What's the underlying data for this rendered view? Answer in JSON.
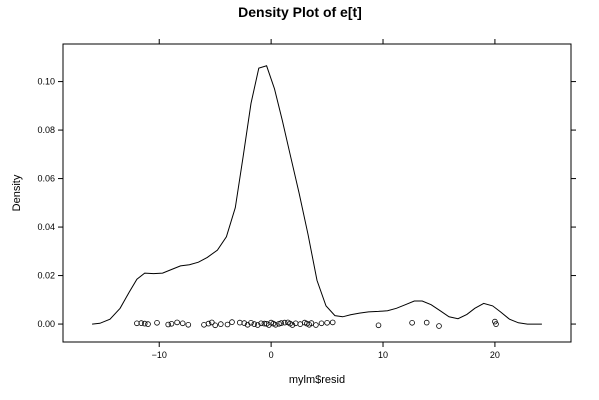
{
  "chart_data": {
    "type": "line",
    "title": "Density Plot of e[t]",
    "xlabel": "mylm$resid",
    "ylabel": "Density",
    "xlim": [
      -18.6,
      26.8
    ],
    "ylim": [
      -0.0074,
      0.1155
    ],
    "x_ticks": [
      -10,
      0,
      10,
      20
    ],
    "x_tick_labels": [
      "−10",
      "0",
      "10",
      "20"
    ],
    "y_ticks": [
      0.0,
      0.02,
      0.04,
      0.06,
      0.08,
      0.1
    ],
    "y_tick_labels": [
      "0.00",
      "0.02",
      "0.04",
      "0.06",
      "0.08",
      "0.10"
    ],
    "grid": false,
    "series": [
      {
        "kind": "density-line",
        "x": [
          -16.0,
          -15.3,
          -14.4,
          -13.5,
          -12.7,
          -12.0,
          -11.3,
          -10.5,
          -9.7,
          -8.9,
          -8.1,
          -7.3,
          -6.5,
          -5.7,
          -4.8,
          -4.0,
          -3.2,
          -2.5,
          -1.8,
          -1.1,
          -0.4,
          0.3,
          1.0,
          1.7,
          2.5,
          3.3,
          4.1,
          4.9,
          5.7,
          6.4,
          7.1,
          7.9,
          8.7,
          9.6,
          10.4,
          11.2,
          12.0,
          12.8,
          13.5,
          14.3,
          15.1,
          15.9,
          16.7,
          17.5,
          18.2,
          19.0,
          19.8,
          20.5,
          21.3,
          22.1,
          22.9,
          23.6,
          24.2
        ],
        "y": [
          0.0,
          0.0003,
          0.002,
          0.0065,
          0.013,
          0.0185,
          0.021,
          0.0208,
          0.021,
          0.0225,
          0.024,
          0.0245,
          0.0255,
          0.0275,
          0.0305,
          0.036,
          0.048,
          0.069,
          0.091,
          0.1055,
          0.1065,
          0.097,
          0.084,
          0.07,
          0.054,
          0.037,
          0.018,
          0.0075,
          0.0035,
          0.003,
          0.0038,
          0.0045,
          0.005,
          0.0052,
          0.0055,
          0.0065,
          0.008,
          0.0095,
          0.0095,
          0.008,
          0.0055,
          0.003,
          0.0022,
          0.004,
          0.0065,
          0.0085,
          0.0075,
          0.005,
          0.002,
          0.0005,
          0.0,
          0.0,
          0.0
        ]
      },
      {
        "kind": "rug-points",
        "y_value": 0.0,
        "x": [
          -12.0,
          -11.6,
          -11.3,
          -11.0,
          -10.2,
          -9.2,
          -8.9,
          -8.4,
          -7.9,
          -7.4,
          -6.0,
          -5.6,
          -5.3,
          -5.0,
          -4.5,
          -3.9,
          -3.5,
          -2.8,
          -2.4,
          -2.1,
          -1.8,
          -1.5,
          -1.2,
          -0.9,
          -0.6,
          -0.4,
          -0.2,
          0.0,
          0.2,
          0.4,
          0.7,
          0.9,
          1.2,
          1.5,
          1.7,
          1.9,
          2.2,
          2.6,
          3.0,
          3.2,
          3.4,
          3.6,
          4.0,
          4.5,
          5.0,
          5.5,
          9.6,
          12.6,
          13.9,
          15.0,
          20.0,
          20.1
        ],
        "y_jitter": [
          0.0003,
          0.0004,
          0.0002,
          0.0,
          0.0005,
          -0.0002,
          0.0001,
          0.0007,
          0.0003,
          -0.0003,
          -0.0003,
          0.0002,
          0.0007,
          -0.0005,
          0.0,
          -0.0002,
          0.0008,
          0.0006,
          0.0004,
          -0.0003,
          0.0005,
          0.0,
          -0.0004,
          0.0003,
          0.0002,
          0.0001,
          -0.0004,
          0.0006,
          0.0002,
          -0.0003,
          0.0001,
          0.0004,
          0.0006,
          0.0007,
          0.0002,
          -0.0004,
          0.0003,
          0.0,
          0.0006,
          0.0002,
          -0.0003,
          0.0004,
          -0.0004,
          0.0003,
          0.0005,
          0.0007,
          -0.0005,
          0.0005,
          0.0006,
          -0.0008,
          0.001,
          0.0
        ]
      }
    ]
  }
}
